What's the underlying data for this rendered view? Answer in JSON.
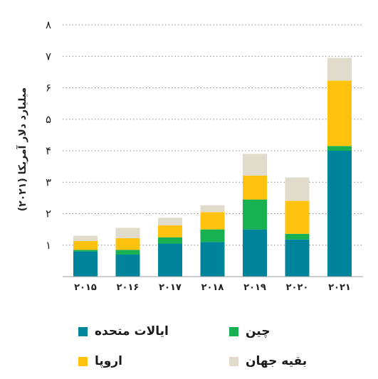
{
  "chart_data": {
    "type": "bar",
    "stacked": true,
    "categories": [
      "۲۰۱۵",
      "۲۰۱۶",
      "۲۰۱۷",
      "۲۰۱۸",
      "۲۰۱۹",
      "۲۰۲۰",
      "۲۰۲۱"
    ],
    "series": [
      {
        "name": "ایالات متحده",
        "color": "#00849c",
        "values": [
          0.8,
          0.7,
          1.05,
          1.1,
          1.5,
          1.18,
          4.0
        ]
      },
      {
        "name": "چین",
        "color": "#17b152",
        "values": [
          0.05,
          0.15,
          0.2,
          0.4,
          0.95,
          0.18,
          0.15
        ]
      },
      {
        "name": "اروپا",
        "color": "#ffc20e",
        "values": [
          0.28,
          0.37,
          0.38,
          0.55,
          0.76,
          1.05,
          2.08
        ]
      },
      {
        "name": "بقیه جهان",
        "color": "#e0dbca",
        "values": [
          0.17,
          0.33,
          0.24,
          0.22,
          0.69,
          0.74,
          0.72
        ]
      }
    ],
    "ylabel": "میلیارد دلار آمریکا (۲۰۲۱)",
    "xlabel": "",
    "title": "",
    "ylim": [
      0,
      8
    ],
    "yticks": [
      1,
      2,
      3,
      4,
      5,
      6,
      7,
      8
    ],
    "ytick_labels": [
      "۱",
      "۲",
      "۳",
      "۴",
      "۵",
      "۶",
      "۷",
      "۸"
    ],
    "grid": "horizontal dotted",
    "legend_position": "bottom"
  }
}
